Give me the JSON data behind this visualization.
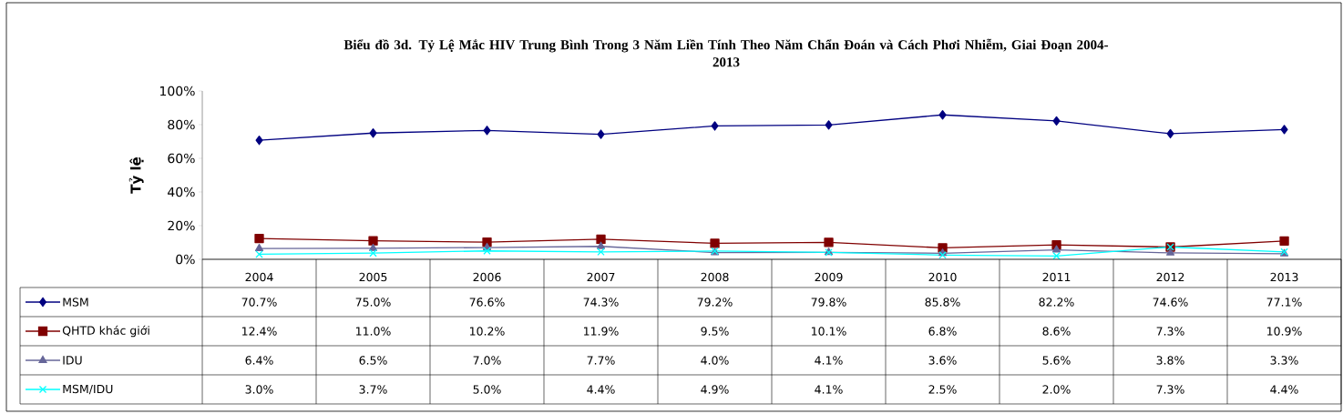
{
  "chart_data": {
    "type": "line",
    "title": "Biểu đồ 3d. Tỷ Lệ Mắc HIV Trung Bình Trong 3 Năm Liền Tính Theo Năm Chẩn Đoán và Cách Phơi Nhiễm, Giai Đoạn 2004-2013",
    "ylabel": "Tỷ lệ",
    "categories": [
      "2004",
      "2005",
      "2006",
      "2007",
      "2008",
      "2009",
      "2010",
      "2011",
      "2012",
      "2013"
    ],
    "ylim": [
      0,
      100
    ],
    "yticks": [
      {
        "value": 0,
        "label": "0%"
      },
      {
        "value": 20,
        "label": "20%"
      },
      {
        "value": 40,
        "label": "40%"
      },
      {
        "value": 60,
        "label": "60%"
      },
      {
        "value": 80,
        "label": "80%"
      },
      {
        "value": 100,
        "label": "100%"
      }
    ],
    "legend": "bottom",
    "series": [
      {
        "name": "MSM",
        "color": "#000080",
        "marker": "diamond",
        "values": [
          70.7,
          75.0,
          76.6,
          74.3,
          79.2,
          79.8,
          85.8,
          82.2,
          74.6,
          77.1
        ],
        "value_labels": [
          "70.7%",
          "75.0%",
          "76.6%",
          "74.3%",
          "79.2%",
          "79.8%",
          "85.8%",
          "82.2%",
          "74.6%",
          "77.1%"
        ]
      },
      {
        "name": "QHTD khác giới",
        "color": "#800000",
        "marker": "square",
        "values": [
          12.4,
          11.0,
          10.2,
          11.9,
          9.5,
          10.1,
          6.8,
          8.6,
          7.3,
          10.9
        ],
        "value_labels": [
          "12.4%",
          "11.0%",
          "10.2%",
          "11.9%",
          "9.5%",
          "10.1%",
          "6.8%",
          "8.6%",
          "7.3%",
          "10.9%"
        ]
      },
      {
        "name": "IDU",
        "color": "#666699",
        "marker": "triangle",
        "values": [
          6.4,
          6.5,
          7.0,
          7.7,
          4.0,
          4.1,
          3.6,
          5.6,
          3.8,
          3.3
        ],
        "value_labels": [
          "6.4%",
          "6.5%",
          "7.0%",
          "7.7%",
          "4.0%",
          "4.1%",
          "3.6%",
          "5.6%",
          "3.8%",
          "3.3%"
        ]
      },
      {
        "name": "MSM/IDU",
        "color": "#00ffff",
        "marker": "cross",
        "values": [
          3.0,
          3.7,
          5.0,
          4.4,
          4.9,
          4.1,
          2.5,
          2.0,
          7.3,
          4.4
        ],
        "value_labels": [
          "3.0%",
          "3.7%",
          "5.0%",
          "4.4%",
          "4.9%",
          "4.1%",
          "2.5%",
          "2.0%",
          "7.3%",
          "4.4%"
        ]
      }
    ]
  }
}
